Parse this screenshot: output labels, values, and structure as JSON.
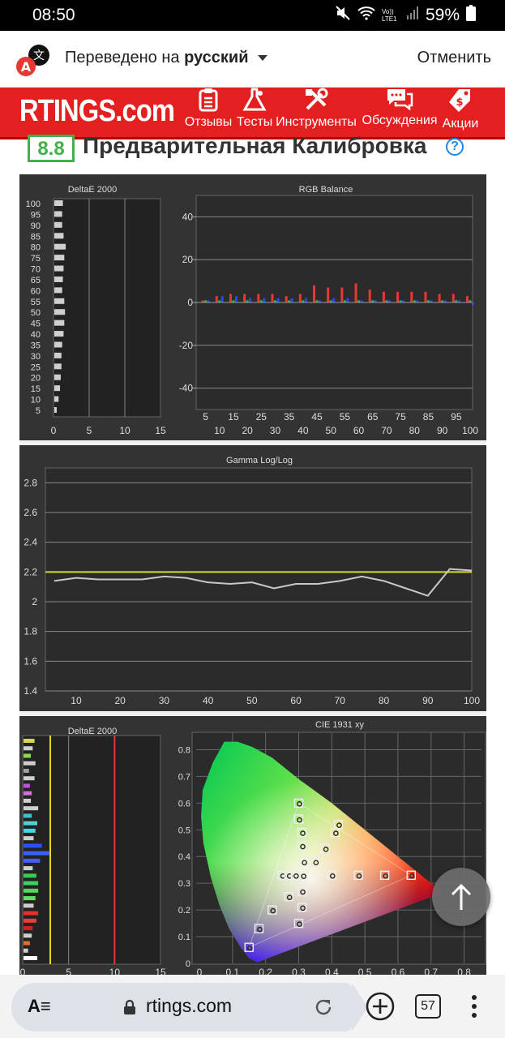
{
  "status_bar": {
    "time": "08:50",
    "battery": "59%",
    "network_label": "Vo)) LTE1"
  },
  "translate_bar": {
    "prefix": "Переведено на ",
    "language": "русский",
    "cancel": "Отменить"
  },
  "site_nav": {
    "brand": "RTINGS.com",
    "items": [
      {
        "label": "Отзывы",
        "icon": "clipboard-icon"
      },
      {
        "label": "Тесты",
        "icon": "flask-icon"
      },
      {
        "label": "Инструменты",
        "icon": "tools-icon"
      },
      {
        "label": "Обсуждения",
        "icon": "chat-icon"
      },
      {
        "label": "Акции",
        "icon": "price-tag-icon"
      }
    ]
  },
  "section": {
    "score": "8.8",
    "title": "Предварительная Калибровка",
    "help_icon": "?"
  },
  "charts": {
    "deltae_grayscale": {
      "title": "DeltaE 2000",
      "categories": [
        "100",
        "95",
        "90",
        "85",
        "80",
        "75",
        "70",
        "65",
        "60",
        "55",
        "50",
        "45",
        "40",
        "35",
        "30",
        "25",
        "20",
        "15",
        "10",
        "5"
      ],
      "values": [
        1.2,
        1.1,
        1.1,
        1.3,
        1.6,
        1.4,
        1.3,
        1.2,
        1.1,
        1.4,
        1.5,
        1.4,
        1.3,
        1.1,
        1.0,
        1.0,
        0.9,
        0.8,
        0.6,
        0.3
      ],
      "xticks": [
        "0",
        "5",
        "10",
        "15"
      ]
    },
    "rgb_balance": {
      "title": "RGB Balance",
      "yticks": [
        "40",
        "20",
        "0",
        "-20",
        "-40"
      ],
      "xticks_top": [
        "5",
        "15",
        "25",
        "35",
        "45",
        "55",
        "65",
        "75",
        "85",
        "95"
      ],
      "xticks_bottom": [
        "10",
        "20",
        "30",
        "40",
        "50",
        "60",
        "70",
        "80",
        "90",
        "100"
      ]
    },
    "gamma": {
      "title": "Gamma Log/Log",
      "yticks": [
        "2.8",
        "2.6",
        "2.4",
        "2.2",
        "2",
        "1.8",
        "1.6",
        "1.4"
      ],
      "xticks": [
        "10",
        "20",
        "30",
        "40",
        "50",
        "60",
        "70",
        "80",
        "90",
        "100"
      ],
      "target": 2.2,
      "x": [
        5,
        10,
        15,
        20,
        25,
        30,
        35,
        40,
        45,
        50,
        55,
        60,
        65,
        70,
        75,
        80,
        85,
        90,
        95,
        100
      ],
      "y": [
        2.14,
        2.16,
        2.15,
        2.15,
        2.15,
        2.17,
        2.16,
        2.13,
        2.12,
        2.13,
        2.09,
        2.12,
        2.12,
        2.14,
        2.17,
        2.14,
        2.09,
        2.04,
        2.22,
        2.21
      ]
    },
    "deltae_color": {
      "title": "DeltaE 2000",
      "xticks": [
        "0",
        "5",
        "10",
        "15"
      ]
    },
    "cie": {
      "title": "CIE 1931 xy",
      "xticks": [
        "0",
        "0.1",
        "0.2",
        "0.3",
        "0.4",
        "0.5",
        "0.6",
        "0.7",
        "0.8"
      ],
      "yticks": [
        "0.8",
        "0.7",
        "0.6",
        "0.5",
        "0.4",
        "0.3",
        "0.2",
        "0.1",
        "0"
      ]
    }
  },
  "bottom_bar": {
    "reader": "A≡",
    "url": "rtings.com",
    "tab_count": "57"
  }
}
